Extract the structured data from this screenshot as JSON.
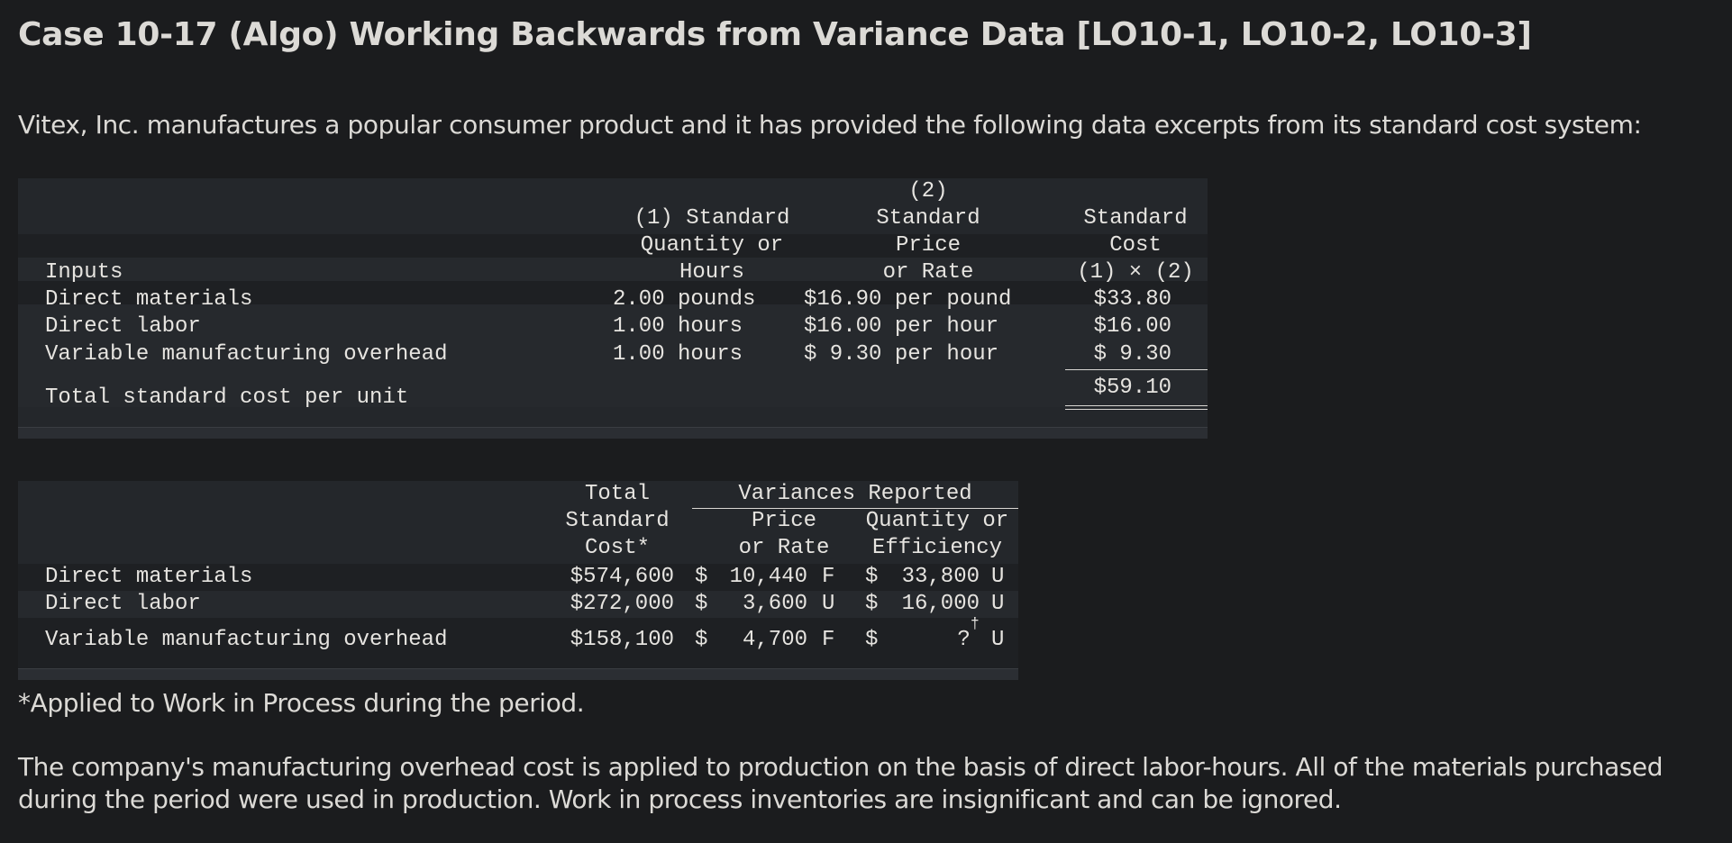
{
  "page": {
    "title": "Case 10-17 (Algo) Working Backwards from Variance Data [LO10-1, LO10-2, LO10-3]",
    "intro": "Vitex, Inc. manufactures a popular consumer product and it has provided the following data excerpts from its standard cost system:",
    "footnote": "*Applied to Work in Process during the period.",
    "paragraph": "The company's manufacturing overhead cost is applied to production on the basis of direct labor-hours. All of the materials purchased during the period were used in production. Work in process inventories are insignificant and can be ignored."
  },
  "standards_table": {
    "headers": {
      "inputs": "Inputs",
      "qty_line1": "(1) Standard",
      "qty_line2": "Quantity or",
      "qty_line3": "Hours",
      "price_line1": "(2)",
      "price_line2": "Standard",
      "price_line3": "Price",
      "price_line4": "or Rate",
      "cost_line1": "Standard",
      "cost_line2": "Cost",
      "cost_line3": "(1) × (2)"
    },
    "rows": [
      {
        "input": "Direct materials",
        "quantity": "2.00 pounds",
        "price": "$16.90 per pound",
        "cost": "$33.80"
      },
      {
        "input": "Direct labor",
        "quantity": "1.00 hours",
        "price": "$16.00 per hour",
        "cost": "$16.00"
      },
      {
        "input": "Variable manufacturing overhead",
        "quantity": "1.00 hours",
        "price": "$ 9.30 per hour",
        "cost": "$ 9.30"
      }
    ],
    "total": {
      "label": "Total standard cost per unit",
      "cost": "$59.10"
    }
  },
  "variance_table": {
    "headers": {
      "total_line1": "Total",
      "total_line2": "Standard",
      "total_line3": "Cost*",
      "group": "Variances Reported",
      "price_line1": "Price",
      "price_line2": "or Rate",
      "qty_line1": "Quantity or",
      "qty_line2": "Efficiency"
    },
    "rows": [
      {
        "input": "Direct materials",
        "total": "$574,600",
        "price_sym": "$",
        "price_val": "10,440",
        "price_flag": "F",
        "qty_sym": "$",
        "qty_val": "33,800",
        "qty_flag": "U"
      },
      {
        "input": "Direct labor",
        "total": "$272,000",
        "price_sym": "$",
        "price_val": "3,600",
        "price_flag": "U",
        "qty_sym": "$",
        "qty_val": "16,000",
        "qty_flag": "U"
      },
      {
        "input": "Variable manufacturing overhead",
        "total": "$158,100",
        "price_sym": "$",
        "price_val": "4,700",
        "price_flag": "F",
        "qty_sym": "$",
        "qty_val": "?",
        "qty_mark": "†",
        "qty_flag": "U"
      }
    ]
  }
}
